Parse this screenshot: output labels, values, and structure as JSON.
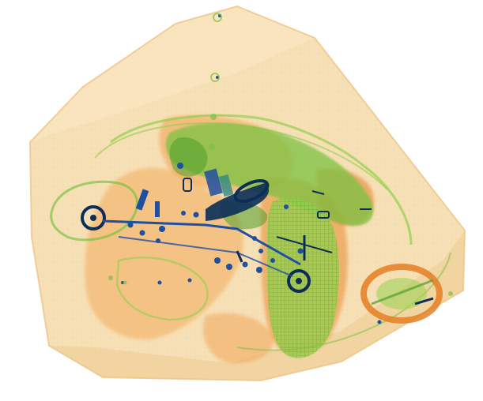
{
  "image": {
    "kind": "x-ray baggage scan",
    "background": "#ffffff",
    "palette": {
      "case_fill": "#f7ddb0",
      "case_edge": "#efc889",
      "organic_orange": "#f0a24f",
      "organic_deep": "#e47f24",
      "inorganic_green": "#8fcf4a",
      "green_deep": "#4f9e2c",
      "metal_blue": "#1f4fa0",
      "metal_dark": "#0b2d58",
      "teal": "#2e8a86"
    }
  }
}
